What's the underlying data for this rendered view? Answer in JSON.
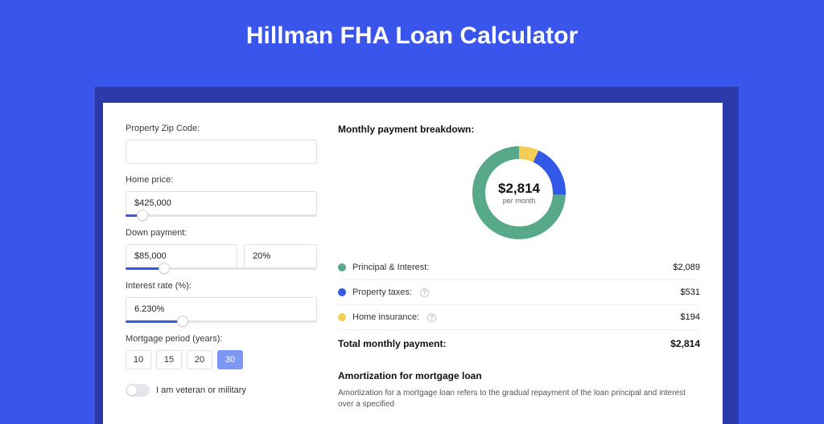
{
  "page_title": "Hillman FHA Loan Calculator",
  "colors": {
    "page_bg": "#3955ec",
    "shadow": "#2a3aa8",
    "card_bg": "#ffffff",
    "accent": "#3359e8",
    "text": "#333333"
  },
  "form": {
    "zip": {
      "label": "Property Zip Code:",
      "value": ""
    },
    "home_price": {
      "label": "Home price:",
      "value": "$425,000",
      "slider_pct": 9
    },
    "down_payment": {
      "label": "Down payment:",
      "value": "$85,000",
      "pct_value": "20%",
      "slider_pct": 20
    },
    "interest_rate": {
      "label": "Interest rate (%):",
      "value": "6.230%",
      "slider_pct": 30
    },
    "mortgage_period": {
      "label": "Mortgage period (years):",
      "options": [
        "10",
        "15",
        "20",
        "30"
      ],
      "selected": "30"
    },
    "veteran": {
      "label": "I am veteran or military",
      "state": false
    }
  },
  "breakdown": {
    "title": "Monthly payment breakdown:",
    "donut": {
      "center_amount": "$2,814",
      "center_sub": "per month",
      "ring_width": 16,
      "radius": 50,
      "series": [
        {
          "name": "Home insurance",
          "color": "#f3ce56",
          "value": 194
        },
        {
          "name": "Property taxes",
          "color": "#3359e8",
          "value": 531
        },
        {
          "name": "Principal & Interest",
          "color": "#57a98a",
          "value": 2089
        }
      ]
    },
    "legend": [
      {
        "label": "Principal & Interest:",
        "color": "#57a98a",
        "value": "$2,089",
        "info": false
      },
      {
        "label": "Property taxes:",
        "color": "#3359e8",
        "value": "$531",
        "info": true
      },
      {
        "label": "Home insurance:",
        "color": "#f3ce56",
        "value": "$194",
        "info": true
      }
    ],
    "total": {
      "label": "Total monthly payment:",
      "value": "$2,814"
    }
  },
  "amort": {
    "title": "Amortization for mortgage loan",
    "text": "Amortization for a mortgage loan refers to the gradual repayment of the loan principal and interest over a specified"
  }
}
